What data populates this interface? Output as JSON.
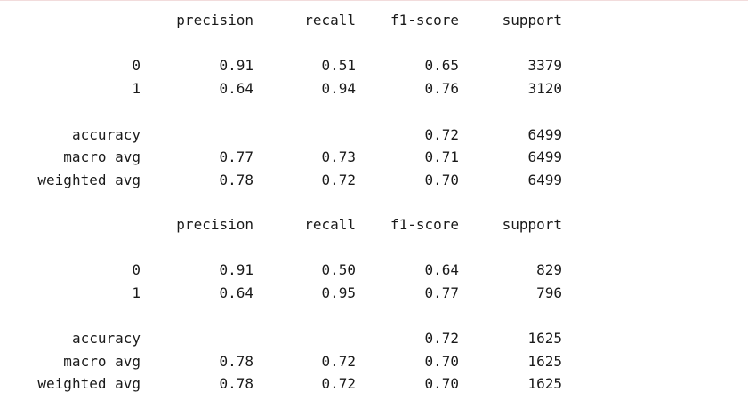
{
  "reports": [
    {
      "header": [
        "precision",
        "recall",
        "f1-score",
        "support"
      ],
      "rows": [
        {
          "label": "0",
          "precision": "0.91",
          "recall": "0.51",
          "f1": "0.65",
          "support": "3379"
        },
        {
          "label": "1",
          "precision": "0.64",
          "recall": "0.94",
          "f1": "0.76",
          "support": "3120"
        }
      ],
      "summary": [
        {
          "label": "accuracy",
          "precision": "",
          "recall": "",
          "f1": "0.72",
          "support": "6499"
        },
        {
          "label": "macro avg",
          "precision": "0.77",
          "recall": "0.73",
          "f1": "0.71",
          "support": "6499"
        },
        {
          "label": "weighted avg",
          "precision": "0.78",
          "recall": "0.72",
          "f1": "0.70",
          "support": "6499"
        }
      ]
    },
    {
      "header": [
        "precision",
        "recall",
        "f1-score",
        "support"
      ],
      "rows": [
        {
          "label": "0",
          "precision": "0.91",
          "recall": "0.50",
          "f1": "0.64",
          "support": "829"
        },
        {
          "label": "1",
          "precision": "0.64",
          "recall": "0.95",
          "f1": "0.77",
          "support": "796"
        }
      ],
      "summary": [
        {
          "label": "accuracy",
          "precision": "",
          "recall": "",
          "f1": "0.72",
          "support": "1625"
        },
        {
          "label": "macro avg",
          "precision": "0.78",
          "recall": "0.72",
          "f1": "0.70",
          "support": "1625"
        },
        {
          "label": "weighted avg",
          "precision": "0.78",
          "recall": "0.72",
          "f1": "0.70",
          "support": "1625"
        }
      ]
    }
  ]
}
